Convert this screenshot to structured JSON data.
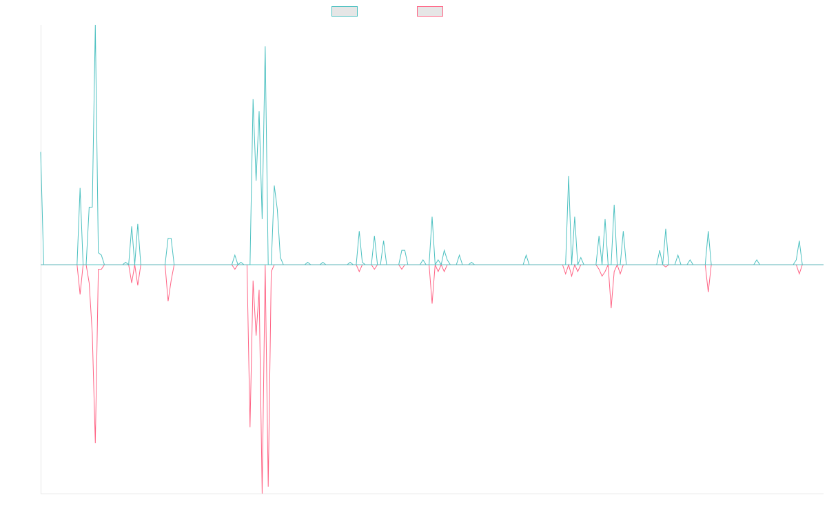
{
  "chart_data": {
    "type": "line",
    "title": "",
    "xlabel": "",
    "ylabel": "",
    "ylim": [
      -1.0,
      1.0
    ],
    "grid": false,
    "legend_position": "top",
    "baseline": 0,
    "series": [
      {
        "color": "#4bc0c0",
        "fill": "#e6e6e6",
        "points": [
          [
            0,
            0.47
          ],
          [
            1,
            0.0
          ],
          [
            12,
            0.0
          ],
          [
            13,
            0.32
          ],
          [
            14,
            0.0
          ],
          [
            15,
            0.0
          ],
          [
            16,
            0.24
          ],
          [
            17,
            0.24
          ],
          [
            18,
            1.0
          ],
          [
            19,
            0.05
          ],
          [
            20,
            0.04
          ],
          [
            21,
            0.0
          ],
          [
            27,
            0.0
          ],
          [
            28,
            0.01
          ],
          [
            29,
            0.0
          ],
          [
            30,
            0.16
          ],
          [
            31,
            0.0
          ],
          [
            32,
            0.17
          ],
          [
            33,
            0.0
          ],
          [
            41,
            0.0
          ],
          [
            42,
            0.11
          ],
          [
            43,
            0.11
          ],
          [
            44,
            0.0
          ],
          [
            63,
            0.0
          ],
          [
            64,
            0.04
          ],
          [
            65,
            0.0
          ],
          [
            66,
            0.01
          ],
          [
            67,
            0.0
          ],
          [
            68,
            0.0
          ],
          [
            69,
            0.0
          ],
          [
            70,
            0.69
          ],
          [
            71,
            0.35
          ],
          [
            72,
            0.64
          ],
          [
            73,
            0.19
          ],
          [
            74,
            0.91
          ],
          [
            75,
            0.0
          ],
          [
            76,
            0.0
          ],
          [
            77,
            0.33
          ],
          [
            78,
            0.23
          ],
          [
            79,
            0.03
          ],
          [
            80,
            0.0
          ],
          [
            87,
            0.0
          ],
          [
            88,
            0.01
          ],
          [
            89,
            0.0
          ],
          [
            92,
            0.0
          ],
          [
            93,
            0.01
          ],
          [
            94,
            0.0
          ],
          [
            101,
            0.0
          ],
          [
            102,
            0.01
          ],
          [
            103,
            0.0
          ],
          [
            104,
            0.0
          ],
          [
            105,
            0.14
          ],
          [
            106,
            0.01
          ],
          [
            107,
            0.0
          ],
          [
            109,
            0.0
          ],
          [
            110,
            0.12
          ],
          [
            111,
            0.0
          ],
          [
            112,
            0.0
          ],
          [
            113,
            0.1
          ],
          [
            114,
            0.0
          ],
          [
            118,
            0.0
          ],
          [
            119,
            0.06
          ],
          [
            120,
            0.06
          ],
          [
            121,
            0.0
          ],
          [
            125,
            0.0
          ],
          [
            126,
            0.02
          ],
          [
            127,
            0.0
          ],
          [
            128,
            0.0
          ],
          [
            129,
            0.2
          ],
          [
            130,
            0.0
          ],
          [
            131,
            0.02
          ],
          [
            132,
            0.0
          ],
          [
            133,
            0.06
          ],
          [
            134,
            0.02
          ],
          [
            135,
            0.0
          ],
          [
            137,
            0.0
          ],
          [
            138,
            0.04
          ],
          [
            139,
            0.0
          ],
          [
            141,
            0.0
          ],
          [
            142,
            0.01
          ],
          [
            143,
            0.0
          ],
          [
            159,
            0.0
          ],
          [
            160,
            0.04
          ],
          [
            161,
            0.0
          ],
          [
            172,
            0.0
          ],
          [
            173,
            0.0
          ],
          [
            174,
            0.37
          ],
          [
            175,
            0.0
          ],
          [
            176,
            0.2
          ],
          [
            177,
            0.0
          ],
          [
            178,
            0.03
          ],
          [
            179,
            0.0
          ],
          [
            183,
            0.0
          ],
          [
            184,
            0.12
          ],
          [
            185,
            0.0
          ],
          [
            186,
            0.19
          ],
          [
            187,
            0.0
          ],
          [
            188,
            0.0
          ],
          [
            189,
            0.25
          ],
          [
            190,
            0.0
          ],
          [
            191,
            0.0
          ],
          [
            192,
            0.14
          ],
          [
            193,
            0.0
          ],
          [
            203,
            0.0
          ],
          [
            204,
            0.06
          ],
          [
            205,
            0.0
          ],
          [
            206,
            0.15
          ],
          [
            207,
            0.0
          ],
          [
            208,
            0.0
          ],
          [
            209,
            0.0
          ],
          [
            210,
            0.04
          ],
          [
            211,
            0.0
          ],
          [
            213,
            0.0
          ],
          [
            214,
            0.02
          ],
          [
            215,
            0.0
          ],
          [
            219,
            0.0
          ],
          [
            220,
            0.14
          ],
          [
            221,
            0.0
          ],
          [
            229,
            0.0
          ],
          [
            230,
            0.0
          ],
          [
            231,
            0.0
          ],
          [
            235,
            0.0
          ],
          [
            236,
            0.02
          ],
          [
            237,
            0.0
          ],
          [
            240,
            0.0
          ],
          [
            241,
            0.0
          ],
          [
            242,
            0.0
          ],
          [
            245,
            0.0
          ],
          [
            246,
            0.0
          ],
          [
            247,
            0.0
          ],
          [
            248,
            0.0
          ],
          [
            249,
            0.02
          ],
          [
            250,
            0.1
          ],
          [
            251,
            0.0
          ],
          [
            258,
            0.0
          ]
        ]
      },
      {
        "color": "#ff6384",
        "fill": "#e6e6e6",
        "points": [
          [
            0,
            0.0
          ],
          [
            12,
            0.0
          ],
          [
            13,
            -0.13
          ],
          [
            14,
            0.0
          ],
          [
            15,
            0.0
          ],
          [
            16,
            -0.08
          ],
          [
            17,
            -0.3
          ],
          [
            18,
            -0.78
          ],
          [
            19,
            -0.02
          ],
          [
            20,
            -0.02
          ],
          [
            21,
            0.0
          ],
          [
            29,
            0.0
          ],
          [
            30,
            -0.08
          ],
          [
            31,
            0.0
          ],
          [
            32,
            -0.09
          ],
          [
            33,
            0.0
          ],
          [
            41,
            0.0
          ],
          [
            42,
            -0.16
          ],
          [
            43,
            -0.07
          ],
          [
            44,
            0.0
          ],
          [
            63,
            0.0
          ],
          [
            64,
            -0.02
          ],
          [
            65,
            0.0
          ],
          [
            68,
            0.0
          ],
          [
            69,
            -0.71
          ],
          [
            70,
            -0.07
          ],
          [
            71,
            -0.31
          ],
          [
            72,
            -0.11
          ],
          [
            73,
            -1.0
          ],
          [
            74,
            0.0
          ],
          [
            75,
            -0.97
          ],
          [
            76,
            -0.03
          ],
          [
            77,
            0.0
          ],
          [
            104,
            0.0
          ],
          [
            105,
            -0.03
          ],
          [
            106,
            0.0
          ],
          [
            109,
            0.0
          ],
          [
            110,
            -0.02
          ],
          [
            111,
            0.0
          ],
          [
            118,
            0.0
          ],
          [
            119,
            -0.02
          ],
          [
            120,
            0.0
          ],
          [
            128,
            0.0
          ],
          [
            129,
            -0.17
          ],
          [
            130,
            0.0
          ],
          [
            131,
            -0.03
          ],
          [
            132,
            0.0
          ],
          [
            133,
            -0.03
          ],
          [
            134,
            0.0
          ],
          [
            172,
            0.0
          ],
          [
            173,
            -0.04
          ],
          [
            174,
            0.0
          ],
          [
            175,
            -0.05
          ],
          [
            176,
            0.0
          ],
          [
            177,
            -0.03
          ],
          [
            178,
            0.0
          ],
          [
            183,
            0.0
          ],
          [
            184,
            -0.02
          ],
          [
            185,
            -0.05
          ],
          [
            186,
            -0.03
          ],
          [
            187,
            0.0
          ],
          [
            188,
            -0.19
          ],
          [
            189,
            -0.03
          ],
          [
            190,
            0.0
          ],
          [
            191,
            -0.04
          ],
          [
            192,
            0.0
          ],
          [
            205,
            0.0
          ],
          [
            206,
            -0.01
          ],
          [
            207,
            0.0
          ],
          [
            219,
            0.0
          ],
          [
            220,
            -0.12
          ],
          [
            221,
            0.0
          ],
          [
            249,
            0.0
          ],
          [
            250,
            -0.04
          ],
          [
            251,
            0.0
          ],
          [
            258,
            0.0
          ]
        ]
      }
    ],
    "x_range": [
      0,
      258
    ]
  }
}
